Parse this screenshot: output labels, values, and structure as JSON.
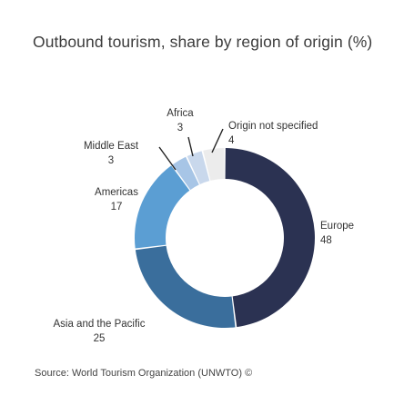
{
  "title": "Outbound tourism, share by region of origin (%)",
  "source": "Source: World Tourism Organization (UNWTO) ©",
  "chart_data": {
    "type": "pie",
    "donut": true,
    "title": "Outbound tourism, share by region of origin (%)",
    "categories": [
      "Europe",
      "Asia and the Pacific",
      "Americas",
      "Middle East",
      "Africa",
      "Origin not specified"
    ],
    "values": [
      48,
      25,
      17,
      3,
      3,
      4
    ],
    "colors": [
      "#2b3252",
      "#3a6e9c",
      "#5b9ed3",
      "#a7c5e6",
      "#c9d8ec",
      "#ececec"
    ],
    "legend": "none"
  }
}
